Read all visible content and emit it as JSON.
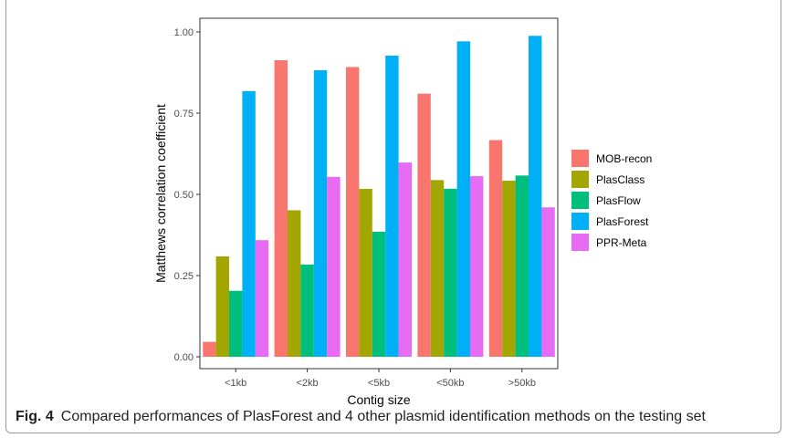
{
  "chart_data": {
    "type": "bar",
    "xlabel": "Contig size",
    "ylabel": "Matthews correlation coefficient",
    "categories": [
      "<1kb",
      "<2kb",
      "<5kb",
      "<50kb",
      ">50kb"
    ],
    "ylim": [
      0,
      1.0
    ],
    "yticks": [
      "0.00",
      "0.25",
      "0.50",
      "0.75",
      "1.00"
    ],
    "grid": false,
    "legend_position": "right",
    "series": [
      {
        "name": "MOB-recon",
        "color": "#F8766D",
        "values": [
          0.046,
          0.913,
          0.892,
          0.81,
          0.667
        ]
      },
      {
        "name": "PlasClass",
        "color": "#A3A500",
        "values": [
          0.309,
          0.451,
          0.517,
          0.544,
          0.542
        ]
      },
      {
        "name": "PlasFlow",
        "color": "#00BF7D",
        "values": [
          0.203,
          0.284,
          0.385,
          0.517,
          0.558
        ]
      },
      {
        "name": "PlasForest",
        "color": "#00B0F6",
        "values": [
          0.818,
          0.882,
          0.927,
          0.971,
          0.988
        ]
      },
      {
        "name": "PPR-Meta",
        "color": "#E76BF3",
        "values": [
          0.359,
          0.554,
          0.598,
          0.556,
          0.46
        ]
      }
    ]
  },
  "caption": {
    "label": "Fig. 4",
    "text": "Compared performances of PlasForest and 4 other plasmid identification methods on the testing set"
  }
}
